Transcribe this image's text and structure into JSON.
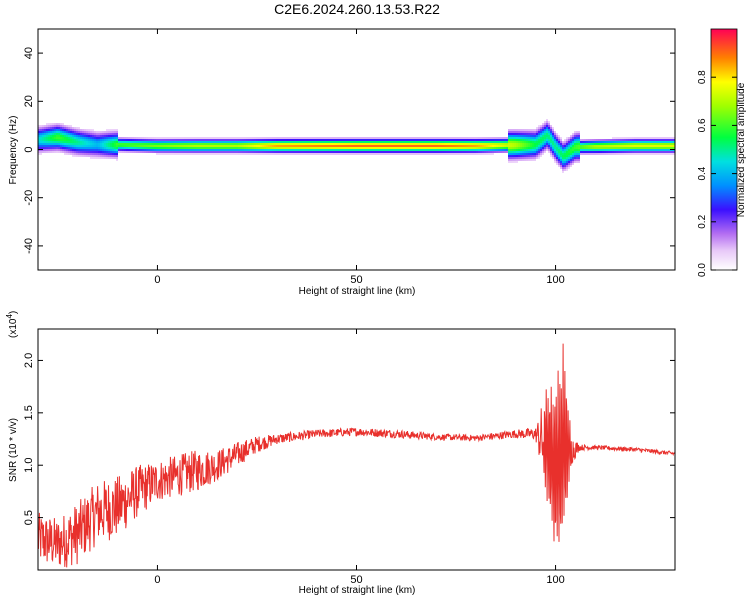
{
  "title": "C2E6.2024.260.13.53.R22",
  "chart_data": [
    {
      "type": "heatmap",
      "xlabel": "Height of straight line (km)",
      "ylabel": "Frequency (Hz)",
      "xlim": [
        -30,
        130
      ],
      "ylim": [
        -50,
        50
      ],
      "x_ticks": [
        0,
        50,
        100
      ],
      "y_ticks": [
        -40,
        -20,
        0,
        20,
        40
      ],
      "colorbar": {
        "label": "Normalized spectral amplitude",
        "range": [
          0,
          1
        ],
        "ticks": [
          0.0,
          0.2,
          0.4,
          0.6,
          0.8
        ]
      },
      "ridge": {
        "center_hz": [
          [
            -30,
            4
          ],
          [
            -25,
            5
          ],
          [
            -20,
            3
          ],
          [
            -15,
            2
          ],
          [
            -10,
            2
          ],
          [
            0,
            1.5
          ],
          [
            20,
            1.5
          ],
          [
            40,
            1.5
          ],
          [
            60,
            1.5
          ],
          [
            80,
            1.5
          ],
          [
            95,
            2
          ],
          [
            98,
            6
          ],
          [
            100,
            1
          ],
          [
            102,
            -3
          ],
          [
            105,
            1
          ],
          [
            120,
            1.5
          ],
          [
            130,
            1.5
          ]
        ],
        "amplitude": [
          [
            -30,
            0.45
          ],
          [
            -25,
            0.6
          ],
          [
            -20,
            0.5
          ],
          [
            -15,
            0.4
          ],
          [
            -10,
            0.6
          ],
          [
            0,
            0.65
          ],
          [
            10,
            0.7
          ],
          [
            20,
            0.7
          ],
          [
            30,
            0.85
          ],
          [
            50,
            0.9
          ],
          [
            70,
            0.9
          ],
          [
            80,
            0.85
          ],
          [
            90,
            0.7
          ],
          [
            95,
            0.55
          ],
          [
            100,
            0.5
          ],
          [
            105,
            0.6
          ],
          [
            110,
            0.7
          ],
          [
            120,
            0.75
          ],
          [
            130,
            0.75
          ]
        ]
      }
    },
    {
      "type": "line",
      "xlabel": "Height of straight line (km)",
      "ylabel": "SNR (10 * v/v)",
      "y_multiplier": "(x10^4)",
      "xlim": [
        -30,
        130
      ],
      "ylim": [
        0.0,
        2.3
      ],
      "x_ticks": [
        0,
        50,
        100
      ],
      "y_ticks": [
        0.5,
        1.0,
        1.5,
        2.0
      ],
      "series": [
        {
          "color": "#e8302c",
          "envelope": [
            [
              -30,
              0.3,
              0.25
            ],
            [
              -25,
              0.25,
              0.25
            ],
            [
              -20,
              0.35,
              0.3
            ],
            [
              -15,
              0.55,
              0.3
            ],
            [
              -10,
              0.6,
              0.3
            ],
            [
              -5,
              0.75,
              0.25
            ],
            [
              0,
              0.85,
              0.2
            ],
            [
              5,
              0.9,
              0.2
            ],
            [
              10,
              0.95,
              0.2
            ],
            [
              15,
              1.0,
              0.15
            ],
            [
              20,
              1.1,
              0.12
            ],
            [
              25,
              1.2,
              0.08
            ],
            [
              30,
              1.25,
              0.05
            ],
            [
              40,
              1.3,
              0.04
            ],
            [
              50,
              1.32,
              0.04
            ],
            [
              60,
              1.3,
              0.04
            ],
            [
              70,
              1.27,
              0.03
            ],
            [
              80,
              1.26,
              0.03
            ],
            [
              90,
              1.3,
              0.04
            ],
            [
              95,
              1.3,
              0.06
            ],
            [
              98,
              1.2,
              0.6
            ],
            [
              100,
              0.9,
              0.9
            ],
            [
              102,
              1.2,
              1.0
            ],
            [
              104,
              1.15,
              0.15
            ],
            [
              106,
              1.17,
              0.03
            ],
            [
              110,
              1.17,
              0.02
            ],
            [
              120,
              1.15,
              0.02
            ],
            [
              130,
              1.11,
              0.02
            ]
          ]
        }
      ]
    }
  ]
}
